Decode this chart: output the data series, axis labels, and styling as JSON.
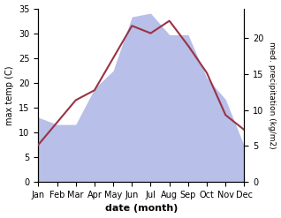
{
  "months": [
    "Jan",
    "Feb",
    "Mar",
    "Apr",
    "May",
    "Jun",
    "Jul",
    "Aug",
    "Sep",
    "Oct",
    "Nov",
    "Dec"
  ],
  "temp": [
    7.5,
    12.0,
    16.5,
    18.5,
    25.0,
    31.5,
    30.0,
    32.5,
    27.5,
    22.0,
    13.5,
    10.5
  ],
  "precip": [
    9.0,
    8.0,
    8.0,
    13.0,
    15.5,
    23.0,
    23.5,
    20.5,
    20.5,
    14.5,
    11.5,
    5.0
  ],
  "temp_color": "#993344",
  "precip_fill_color": "#b8bfe8",
  "temp_ylim": [
    0,
    35
  ],
  "precip_ylim": [
    0,
    24.17
  ],
  "temp_yticks": [
    0,
    5,
    10,
    15,
    20,
    25,
    30,
    35
  ],
  "precip_yticks": [
    0,
    5,
    10,
    15,
    20
  ],
  "ylabel_left": "max temp (C)",
  "ylabel_right": "med. precipitation (kg/m2)",
  "xlabel": "date (month)",
  "bg_color": "#ffffff"
}
